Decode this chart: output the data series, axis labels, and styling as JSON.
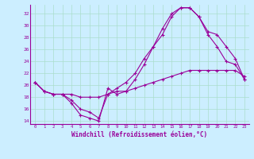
{
  "xlabel": "Windchill (Refroidissement éolien,°C)",
  "bg_color": "#cceeff",
  "line_color": "#990099",
  "grid_color": "#aaddcc",
  "xlim": [
    -0.5,
    23.5
  ],
  "ylim": [
    13.5,
    33.5
  ],
  "yticks": [
    14,
    16,
    18,
    20,
    22,
    24,
    26,
    28,
    30,
    32
  ],
  "xticks": [
    0,
    1,
    2,
    3,
    4,
    5,
    6,
    7,
    8,
    9,
    10,
    11,
    12,
    13,
    14,
    15,
    16,
    17,
    18,
    19,
    20,
    21,
    22,
    23
  ],
  "series": [
    {
      "x": [
        0,
        1,
        2,
        3,
        4,
        5,
        6,
        7,
        8,
        9,
        10,
        11,
        12,
        13,
        14,
        15,
        16,
        17,
        18,
        19,
        20,
        21,
        22,
        23
      ],
      "y": [
        20.5,
        19.0,
        18.5,
        18.5,
        17.0,
        15.0,
        14.5,
        14.0,
        19.5,
        18.5,
        19.0,
        21.0,
        23.5,
        26.5,
        29.5,
        32.0,
        33.0,
        33.0,
        31.5,
        29.0,
        28.5,
        26.5,
        24.5,
        21.0
      ]
    },
    {
      "x": [
        0,
        1,
        2,
        3,
        4,
        5,
        6,
        7,
        8,
        9,
        10,
        11,
        12,
        13,
        14,
        15,
        16,
        17,
        18,
        19,
        20,
        21,
        22,
        23
      ],
      "y": [
        20.5,
        19.0,
        18.5,
        18.5,
        17.5,
        16.0,
        15.5,
        14.5,
        18.5,
        19.5,
        20.5,
        22.0,
        24.5,
        26.5,
        28.5,
        31.5,
        33.0,
        33.0,
        31.5,
        28.5,
        26.5,
        24.0,
        23.5,
        21.0
      ]
    },
    {
      "x": [
        0,
        1,
        2,
        3,
        4,
        5,
        6,
        7,
        8,
        9,
        10,
        11,
        12,
        13,
        14,
        15,
        16,
        17,
        18,
        19,
        20,
        21,
        22,
        23
      ],
      "y": [
        20.5,
        19.0,
        18.5,
        18.5,
        18.5,
        18.0,
        18.0,
        18.0,
        18.5,
        19.0,
        19.0,
        19.5,
        20.0,
        20.5,
        21.0,
        21.5,
        22.0,
        22.5,
        22.5,
        22.5,
        22.5,
        22.5,
        22.5,
        21.5
      ]
    }
  ]
}
